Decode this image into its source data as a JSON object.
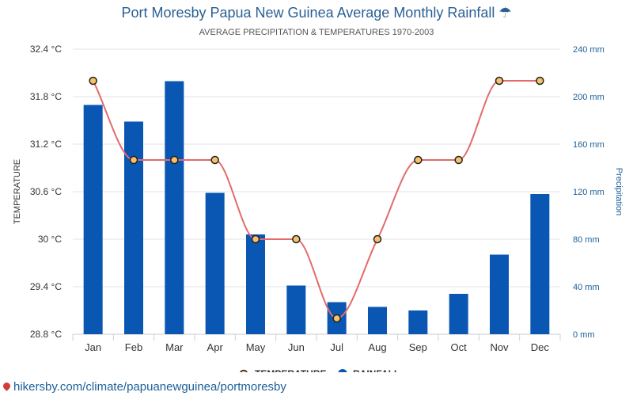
{
  "header": {
    "title": "Port Moresby Papua New Guinea Average Monthly Rainfall",
    "title_icon": "umbrella-icon",
    "subtitle": "AVERAGE PRECIPITATION & TEMPERATURES 1970-2003"
  },
  "source": {
    "icon": "location-pin-icon",
    "text": "hikersby.com/climate/papuanewguinea/portmoresby"
  },
  "colors": {
    "title": "#2a5f93",
    "bar": "#0a56b3",
    "line": "#e36b6b",
    "marker_fill": "#f5c26b",
    "marker_stroke": "#222222",
    "right_axis": "#1b5f99"
  },
  "chart_data": {
    "type": "bar",
    "categories": [
      "Jan",
      "Feb",
      "Mar",
      "Apr",
      "May",
      "Jun",
      "Jul",
      "Aug",
      "Sep",
      "Oct",
      "Nov",
      "Dec"
    ],
    "series": [
      {
        "name": "RAINFALL",
        "type": "bar",
        "axis": "right",
        "values": [
          193,
          179,
          213,
          119,
          84,
          41,
          27,
          23,
          20,
          34,
          67,
          118
        ]
      },
      {
        "name": "TEMPERATURE",
        "type": "line",
        "axis": "left",
        "values": [
          32,
          31,
          31,
          31,
          30,
          30,
          29,
          30,
          31,
          31,
          32,
          32
        ]
      }
    ],
    "y_left": {
      "label": "TEMPERATURE",
      "min": 28.8,
      "max": 32.4,
      "ticks": [
        "28.8 °C",
        "29.4 °C",
        "30 °C",
        "30.6 °C",
        "31.2 °C",
        "31.8 °C",
        "32.4 °C"
      ]
    },
    "y_right": {
      "label": "Precipitation",
      "min": 0,
      "max": 240,
      "ticks": [
        "0 mm",
        "40 mm",
        "80 mm",
        "120 mm",
        "160 mm",
        "200 mm",
        "240 mm"
      ]
    },
    "grid": true,
    "legend_position": "bottom",
    "legend": [
      {
        "label": "TEMPERATURE",
        "kind": "line-marker"
      },
      {
        "label": "RAINFALL",
        "kind": "dot"
      }
    ]
  }
}
